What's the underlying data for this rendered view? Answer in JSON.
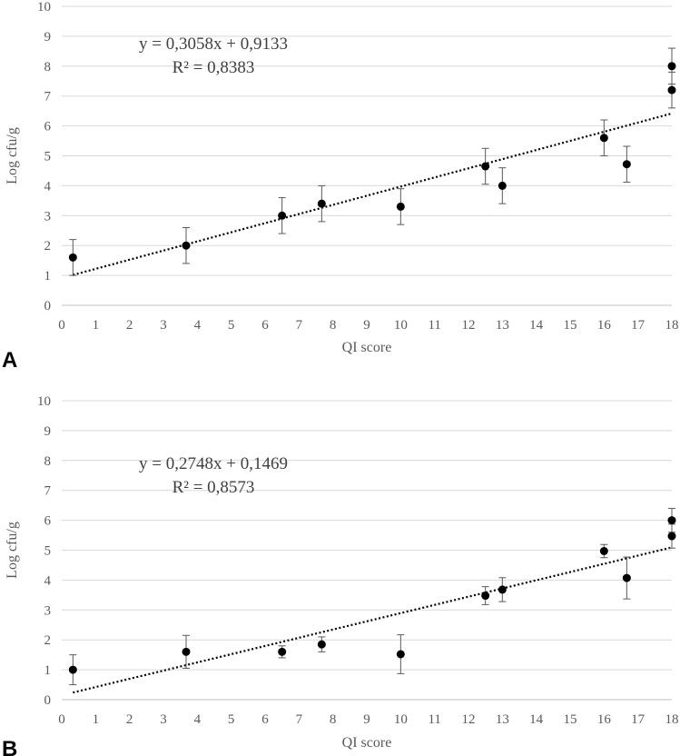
{
  "chart_data": [
    {
      "type": "scatter",
      "panel_label": "A",
      "xlabel": "QI score",
      "ylabel": "Log cfu/g",
      "xlim": [
        0,
        18
      ],
      "ylim": [
        0,
        10
      ],
      "x_ticks": [
        "0",
        "1",
        "2",
        "3",
        "4",
        "5",
        "6",
        "7",
        "8",
        "9",
        "10",
        "11",
        "12",
        "13",
        "14",
        "15",
        "16",
        "17",
        "18"
      ],
      "y_ticks": [
        "0",
        "1",
        "2",
        "3",
        "4",
        "5",
        "6",
        "7",
        "8",
        "9",
        "10"
      ],
      "grid": "horizontal",
      "points": [
        {
          "x": 0.33,
          "y": 1.6,
          "err": 0.6
        },
        {
          "x": 3.67,
          "y": 2.0,
          "err": 0.6
        },
        {
          "x": 6.5,
          "y": 3.0,
          "err": 0.6
        },
        {
          "x": 7.67,
          "y": 3.4,
          "err": 0.6
        },
        {
          "x": 10.0,
          "y": 3.3,
          "err": 0.6
        },
        {
          "x": 12.5,
          "y": 4.65,
          "err": 0.6
        },
        {
          "x": 13.0,
          "y": 4.0,
          "err": 0.6
        },
        {
          "x": 16.0,
          "y": 5.6,
          "err": 0.6
        },
        {
          "x": 16.67,
          "y": 4.72,
          "err": 0.6
        },
        {
          "x": 18.0,
          "y": 8.0,
          "err": 0.6
        },
        {
          "x": 18.0,
          "y": 7.2,
          "err": 0.6
        }
      ],
      "trendline": {
        "slope": 0.3058,
        "intercept": 0.9133,
        "x_range": [
          0.33,
          18
        ]
      },
      "equation": "y = 0,3058x + 0,9133",
      "r_squared": "R² = 0,8383",
      "colors": {
        "marker": "#000000",
        "trend": "#000000",
        "grid": "#d9d9d9",
        "error": "#595959"
      }
    },
    {
      "type": "scatter",
      "panel_label": "B",
      "xlabel": "QI score",
      "ylabel": "Log cfu/g",
      "xlim": [
        0,
        18
      ],
      "ylim": [
        0,
        10
      ],
      "x_ticks": [
        "0",
        "1",
        "2",
        "3",
        "4",
        "5",
        "6",
        "7",
        "8",
        "9",
        "10",
        "11",
        "12",
        "13",
        "14",
        "15",
        "16",
        "17",
        "18"
      ],
      "y_ticks": [
        "0",
        "1",
        "2",
        "3",
        "4",
        "5",
        "6",
        "7",
        "8",
        "9",
        "10"
      ],
      "grid": "horizontal",
      "points": [
        {
          "x": 0.33,
          "y": 1.0,
          "err": 0.5
        },
        {
          "x": 3.67,
          "y": 1.6,
          "err": 0.55
        },
        {
          "x": 6.5,
          "y": 1.6,
          "err": 0.2
        },
        {
          "x": 7.67,
          "y": 1.85,
          "err": 0.25
        },
        {
          "x": 10.0,
          "y": 1.52,
          "err": 0.65
        },
        {
          "x": 12.5,
          "y": 3.48,
          "err": 0.3
        },
        {
          "x": 13.0,
          "y": 3.68,
          "err": 0.4
        },
        {
          "x": 16.0,
          "y": 4.97,
          "err": 0.22
        },
        {
          "x": 16.67,
          "y": 4.07,
          "err": 0.7
        },
        {
          "x": 18.0,
          "y": 6.0,
          "err": 0.4
        },
        {
          "x": 18.0,
          "y": 5.47,
          "err": 0.4
        }
      ],
      "trendline": {
        "slope": 0.2748,
        "intercept": 0.1469,
        "x_range": [
          0.33,
          18
        ]
      },
      "equation": "y = 0,2748x + 0,1469",
      "r_squared": "R² = 0,8573",
      "colors": {
        "marker": "#000000",
        "trend": "#000000",
        "grid": "#d9d9d9",
        "error": "#595959"
      }
    }
  ]
}
